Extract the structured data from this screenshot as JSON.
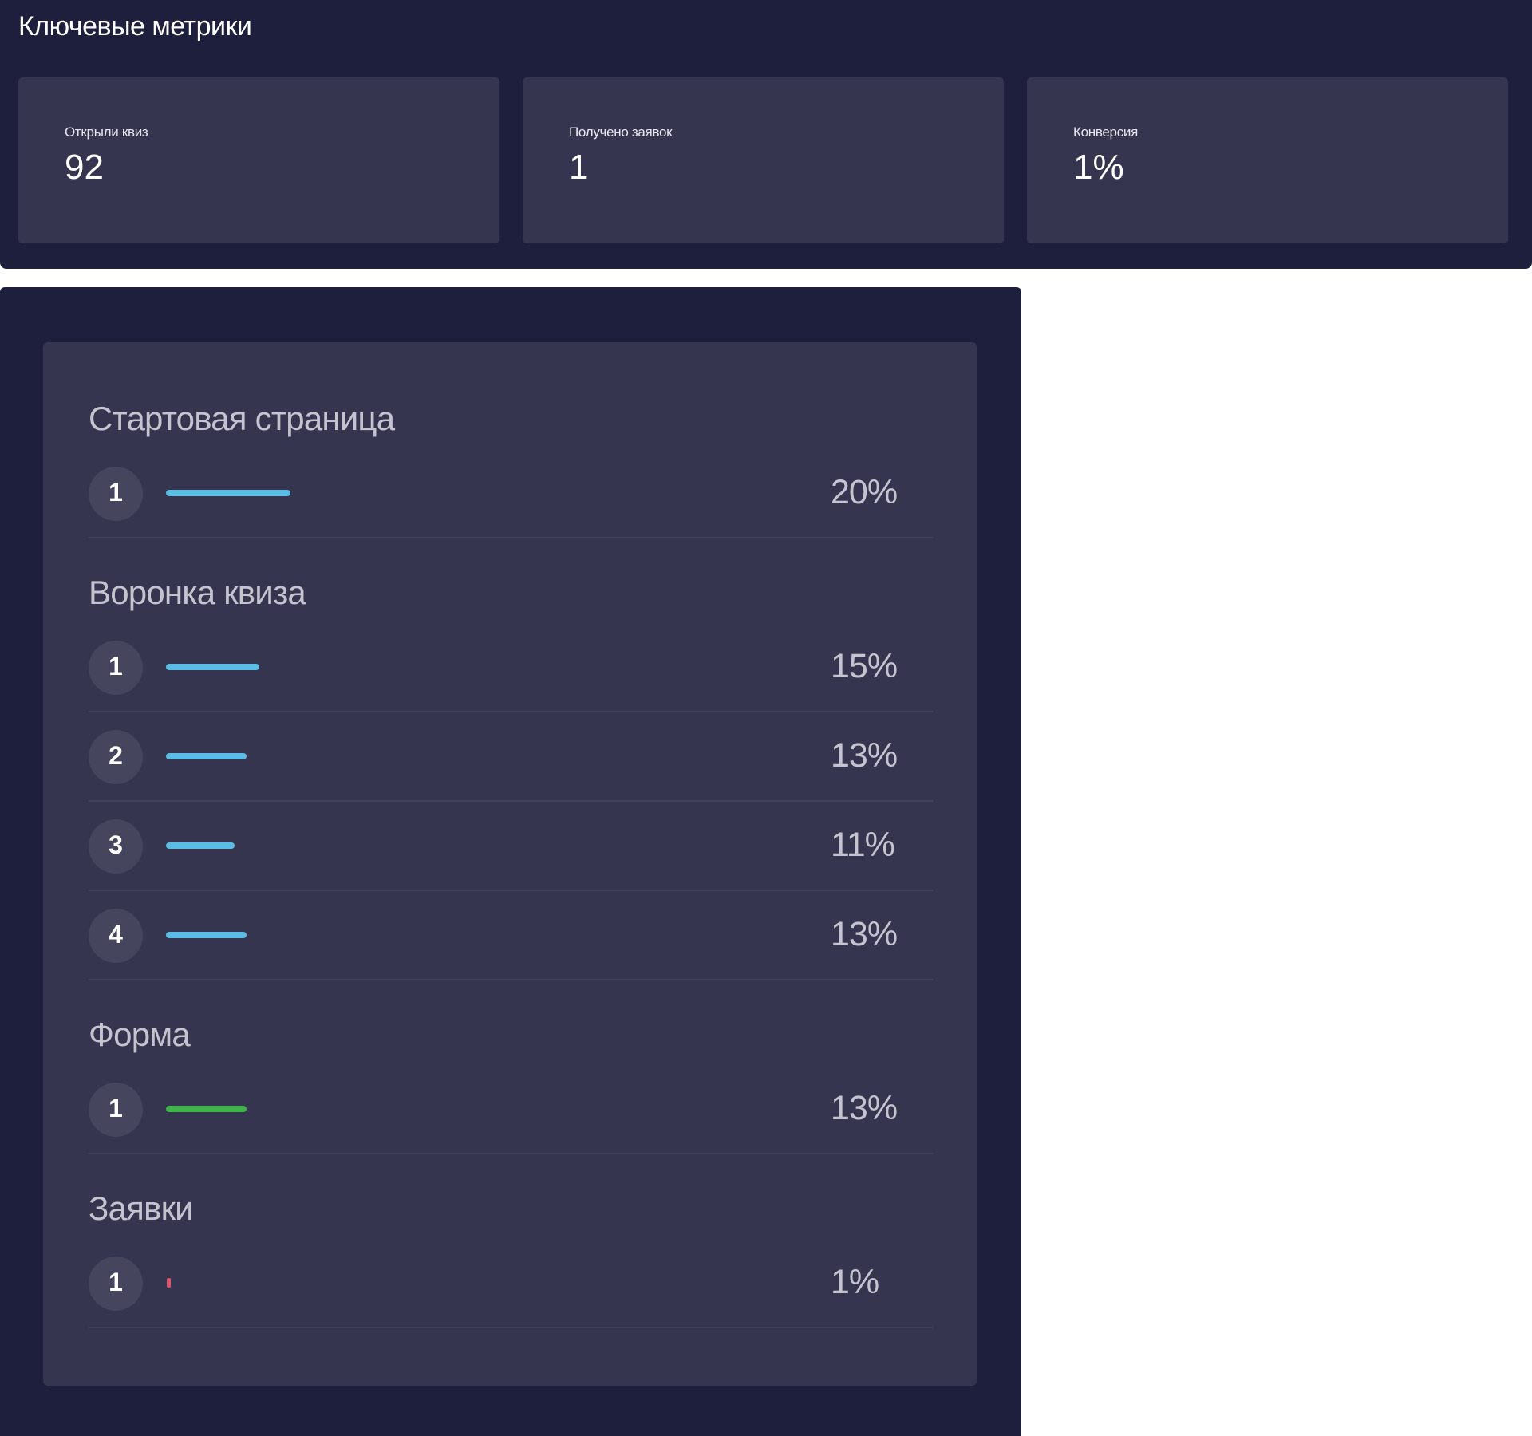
{
  "metrics": {
    "title": "Ключевые метрики",
    "cards": [
      {
        "label": "Открыли квиз",
        "value": "92"
      },
      {
        "label": "Получено заявок",
        "value": "1"
      },
      {
        "label": "Конверсия",
        "value": "1%"
      }
    ]
  },
  "funnel": {
    "sections": [
      {
        "title": "Стартовая страница",
        "steps": [
          {
            "number": "1",
            "percent": "20%",
            "fraction": 0.2,
            "color": "#5bbde4"
          }
        ]
      },
      {
        "title": "Воронка квиза",
        "steps": [
          {
            "number": "1",
            "percent": "15%",
            "fraction": 0.15,
            "color": "#5bbde4"
          },
          {
            "number": "2",
            "percent": "13%",
            "fraction": 0.13,
            "color": "#5bbde4"
          },
          {
            "number": "3",
            "percent": "11%",
            "fraction": 0.11,
            "color": "#5bbde4"
          },
          {
            "number": "4",
            "percent": "13%",
            "fraction": 0.13,
            "color": "#5bbde4"
          }
        ]
      },
      {
        "title": "Форма",
        "steps": [
          {
            "number": "1",
            "percent": "13%",
            "fraction": 0.13,
            "color": "#3fb44a"
          }
        ]
      },
      {
        "title": "Заявки",
        "steps": [
          {
            "number": "1",
            "percent": "1%",
            "fraction": 0.01,
            "color": "#d9566a"
          }
        ]
      }
    ]
  }
}
